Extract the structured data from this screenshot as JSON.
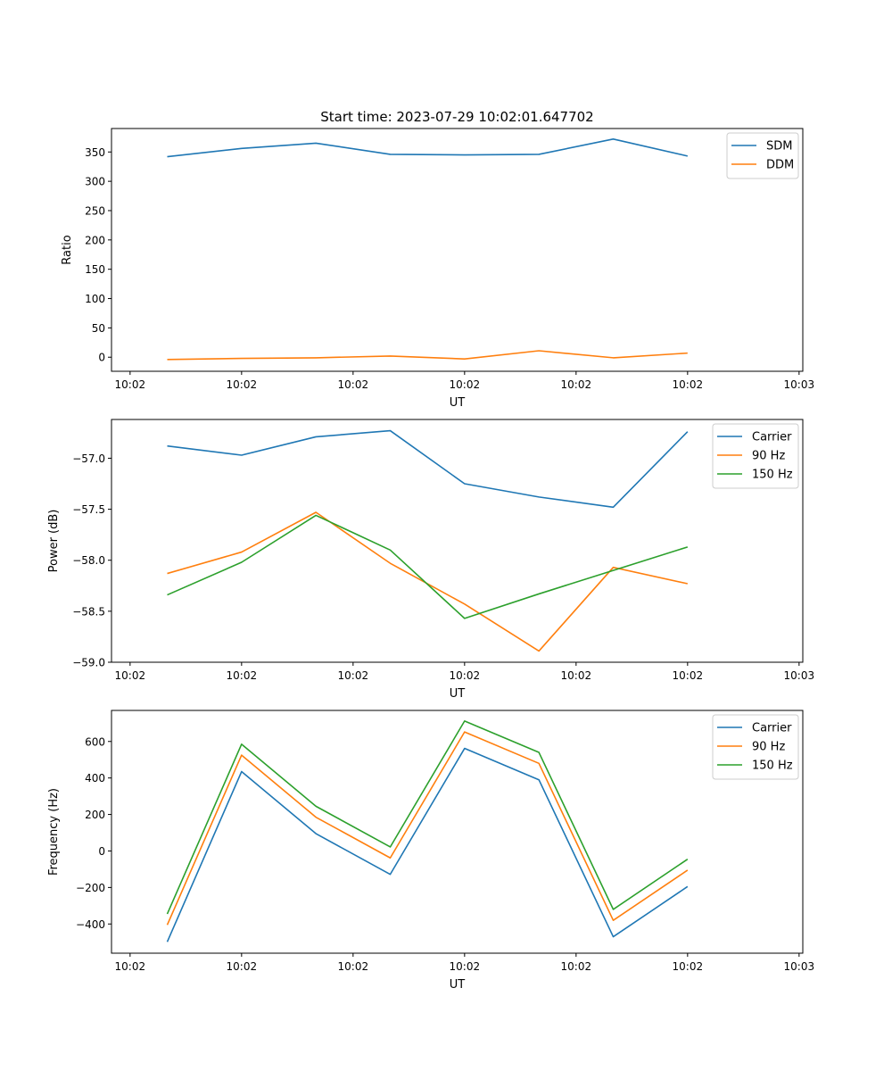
{
  "figure_title": "Start time: 2023-07-29 10:02:01.647702",
  "colors": {
    "blue": "#1f77b4",
    "orange": "#ff7f0e",
    "green": "#2ca02c"
  },
  "chart_data": [
    {
      "type": "line",
      "title": "Start time: 2023-07-29 10:02:01.647702",
      "xlabel": "UT",
      "ylabel": "Ratio",
      "x": [
        0,
        1,
        2,
        3,
        4,
        5,
        6,
        7
      ],
      "xlim": [
        -0.75,
        8.55
      ],
      "xtick_values": [
        -0.5,
        1.0,
        2.5,
        4.0,
        5.5,
        7.0,
        8.5
      ],
      "xtick_labels": [
        "10:02",
        "10:02",
        "10:02",
        "10:02",
        "10:02",
        "10:02",
        "10:03"
      ],
      "ylim": [
        -24,
        390
      ],
      "yticks": [
        0,
        50,
        100,
        150,
        200,
        250,
        300,
        350
      ],
      "ytick_labels": [
        "0",
        "50",
        "100",
        "150",
        "200",
        "250",
        "300",
        "350"
      ],
      "legend_position": "top-right",
      "series": [
        {
          "name": "SDM",
          "color": "#1f77b4",
          "values": [
            342,
            356,
            365,
            346,
            345,
            346,
            372,
            343
          ]
        },
        {
          "name": "DDM",
          "color": "#ff7f0e",
          "values": [
            -4,
            -2,
            -1,
            2,
            -3,
            11,
            -1,
            7
          ]
        }
      ]
    },
    {
      "type": "line",
      "title": "",
      "xlabel": "UT",
      "ylabel": "Power (dB)",
      "x": [
        0,
        1,
        2,
        3,
        4,
        5,
        6,
        7
      ],
      "xlim": [
        -0.75,
        8.55
      ],
      "xtick_values": [
        -0.5,
        1.0,
        2.5,
        4.0,
        5.5,
        7.0,
        8.5
      ],
      "xtick_labels": [
        "10:02",
        "10:02",
        "10:02",
        "10:02",
        "10:02",
        "10:02",
        "10:03"
      ],
      "ylim": [
        -59.0,
        -56.62
      ],
      "yticks": [
        -59.0,
        -58.5,
        -58.0,
        -57.5,
        -57.0
      ],
      "ytick_labels": [
        "−59.0",
        "−58.5",
        "−58.0",
        "−57.5",
        "−57.0"
      ],
      "legend_position": "top-right",
      "series": [
        {
          "name": "Carrier",
          "color": "#1f77b4",
          "values": [
            -56.88,
            -56.97,
            -56.79,
            -56.73,
            -57.25,
            -57.38,
            -57.48,
            -56.74
          ]
        },
        {
          "name": "90 Hz",
          "color": "#ff7f0e",
          "values": [
            -58.13,
            -57.92,
            -57.53,
            -58.03,
            -58.43,
            -58.89,
            -58.07,
            -58.23
          ]
        },
        {
          "name": "150 Hz",
          "color": "#2ca02c",
          "values": [
            -58.34,
            -58.02,
            -57.56,
            -57.9,
            -58.57,
            -58.33,
            -58.1,
            -57.87
          ]
        }
      ]
    },
    {
      "type": "line",
      "title": "",
      "xlabel": "UT",
      "ylabel": "Frequency (Hz)",
      "x": [
        0,
        1,
        2,
        3,
        4,
        5,
        6,
        7
      ],
      "xlim": [
        -0.75,
        8.55
      ],
      "xtick_values": [
        -0.5,
        1.0,
        2.5,
        4.0,
        5.5,
        7.0,
        8.5
      ],
      "xtick_labels": [
        "10:02",
        "10:02",
        "10:02",
        "10:02",
        "10:02",
        "10:02",
        "10:03"
      ],
      "ylim": [
        -560,
        770
      ],
      "yticks": [
        -400,
        -200,
        0,
        200,
        400,
        600
      ],
      "ytick_labels": [
        "−400",
        "−200",
        "0",
        "200",
        "400",
        "600"
      ],
      "legend_position": "top-right",
      "series": [
        {
          "name": "Carrier",
          "color": "#1f77b4",
          "values": [
            -498,
            435,
            95,
            -128,
            562,
            390,
            -470,
            -195
          ]
        },
        {
          "name": "90 Hz",
          "color": "#ff7f0e",
          "values": [
            -405,
            525,
            185,
            -38,
            652,
            480,
            -380,
            -105
          ]
        },
        {
          "name": "150 Hz",
          "color": "#2ca02c",
          "values": [
            -345,
            585,
            245,
            22,
            712,
            540,
            -320,
            -45
          ]
        }
      ]
    }
  ]
}
